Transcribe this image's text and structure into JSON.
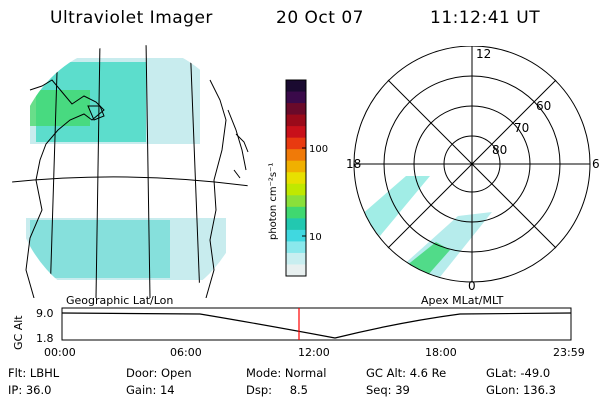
{
  "header": {
    "instrument": "Ultraviolet Imager",
    "date": "20 Oct 07",
    "time": "11:12:41 UT"
  },
  "geo_panel": {
    "label": "Geographic Lat/Lon"
  },
  "polar_panel": {
    "label": "Apex MLat/MLT",
    "mlt_labels": {
      "top": "12",
      "left": "18",
      "right": "6",
      "bottom": "0"
    },
    "lat_labels": [
      "60",
      "70",
      "80"
    ]
  },
  "colorbar": {
    "unit": "photon cm⁻²s⁻¹",
    "ticks": [
      "100",
      "10"
    ],
    "colors": [
      "#1a0a30",
      "#3a0a4a",
      "#6a0a2a",
      "#9a0a1a",
      "#c8101a",
      "#e83a10",
      "#f07a08",
      "#f0b000",
      "#e8e000",
      "#c0e800",
      "#8ae03a",
      "#40d870",
      "#22c8b0",
      "#40d8e0",
      "#8ae8ec",
      "#c8eef0",
      "#e8f0f0"
    ]
  },
  "altitude_plot": {
    "ylabel": "GC Alt",
    "y_top": "9.0",
    "y_bottom": "1.8",
    "x_ticks": [
      "00:00",
      "06:00",
      "12:00",
      "18:00",
      "23:59"
    ],
    "marker_color": "#ff0000"
  },
  "info": {
    "flt_label": "Flt:",
    "flt_value": "LBHL",
    "ip_label": "IP:",
    "ip_value": "36.0",
    "door_label": "Door:",
    "door_value": "Open",
    "gain_label": "Gain:",
    "gain_value": "14",
    "mode_label": "Mode:",
    "mode_value": "Normal",
    "dsp_label": "Dsp:",
    "dsp_value": "8.5",
    "gcalt_label": "GC Alt:",
    "gcalt_value": "4.6 Re",
    "seq_label": "Seq:",
    "seq_value": "39",
    "glat_label": "GLat:",
    "glat_value": "-49.0",
    "glon_label": "GLon:",
    "glon_value": "136.3"
  }
}
